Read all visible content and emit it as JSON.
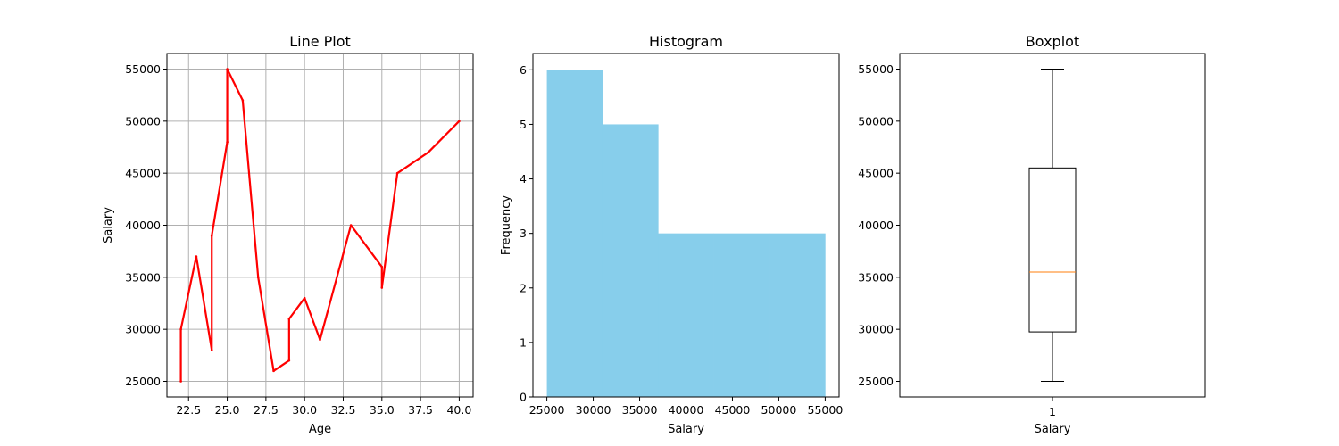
{
  "chart_data": [
    {
      "type": "line",
      "title": "Line Plot",
      "xlabel": "Age",
      "ylabel": "Salary",
      "xlim": [
        21.1,
        40.9
      ],
      "ylim": [
        23500,
        56500
      ],
      "grid": true,
      "color": "#ff0000",
      "xticks": [
        22.5,
        25.0,
        27.5,
        30.0,
        32.5,
        35.0,
        37.5,
        40.0
      ],
      "xtick_labels": [
        "22.5",
        "25.0",
        "27.5",
        "30.0",
        "32.5",
        "35.0",
        "37.5",
        "40.0"
      ],
      "yticks": [
        25000,
        30000,
        35000,
        40000,
        45000,
        50000,
        55000
      ],
      "ytick_labels": [
        "25000",
        "30000",
        "35000",
        "40000",
        "45000",
        "50000",
        "55000"
      ],
      "points": [
        {
          "x": 22,
          "y": 25000
        },
        {
          "x": 22,
          "y": 30000
        },
        {
          "x": 23,
          "y": 37000
        },
        {
          "x": 24,
          "y": 28000
        },
        {
          "x": 24,
          "y": 39000
        },
        {
          "x": 25,
          "y": 48000
        },
        {
          "x": 25,
          "y": 55000
        },
        {
          "x": 26,
          "y": 52000
        },
        {
          "x": 27,
          "y": 35000
        },
        {
          "x": 28,
          "y": 26000
        },
        {
          "x": 29,
          "y": 27000
        },
        {
          "x": 29,
          "y": 31000
        },
        {
          "x": 30,
          "y": 33000
        },
        {
          "x": 31,
          "y": 29000
        },
        {
          "x": 33,
          "y": 40000
        },
        {
          "x": 35,
          "y": 36000
        },
        {
          "x": 35,
          "y": 34000
        },
        {
          "x": 36,
          "y": 45000
        },
        {
          "x": 38,
          "y": 47000
        },
        {
          "x": 40,
          "y": 50000
        }
      ]
    },
    {
      "type": "bar",
      "title": "Histogram",
      "xlabel": "Salary",
      "ylabel": "Frequency",
      "xlim": [
        23500,
        56500
      ],
      "ylim": [
        0,
        6.3
      ],
      "color": "#87ceeb",
      "bins": [
        25000,
        31000,
        37000,
        43000,
        49000,
        55000
      ],
      "counts": [
        6,
        5,
        3,
        3,
        3
      ],
      "xticks": [
        25000,
        30000,
        35000,
        40000,
        45000,
        50000,
        55000
      ],
      "xtick_labels": [
        "25000",
        "30000",
        "35000",
        "40000",
        "45000",
        "50000",
        "55000"
      ],
      "yticks": [
        0,
        1,
        2,
        3,
        4,
        5,
        6
      ],
      "ytick_labels": [
        "0",
        "1",
        "2",
        "3",
        "4",
        "5",
        "6"
      ]
    },
    {
      "type": "boxplot",
      "title": "Boxplot",
      "xlabel": "Salary",
      "ylabel": "",
      "ylim": [
        23500,
        56500
      ],
      "category_label": "1",
      "whisker_low": 25000,
      "q1": 29750,
      "median": 35500,
      "q3": 45500,
      "whisker_high": 55000,
      "median_color": "#ff7f0e",
      "yticks": [
        25000,
        30000,
        35000,
        40000,
        45000,
        50000,
        55000
      ],
      "ytick_labels": [
        "25000",
        "30000",
        "35000",
        "40000",
        "45000",
        "50000",
        "55000"
      ]
    }
  ]
}
